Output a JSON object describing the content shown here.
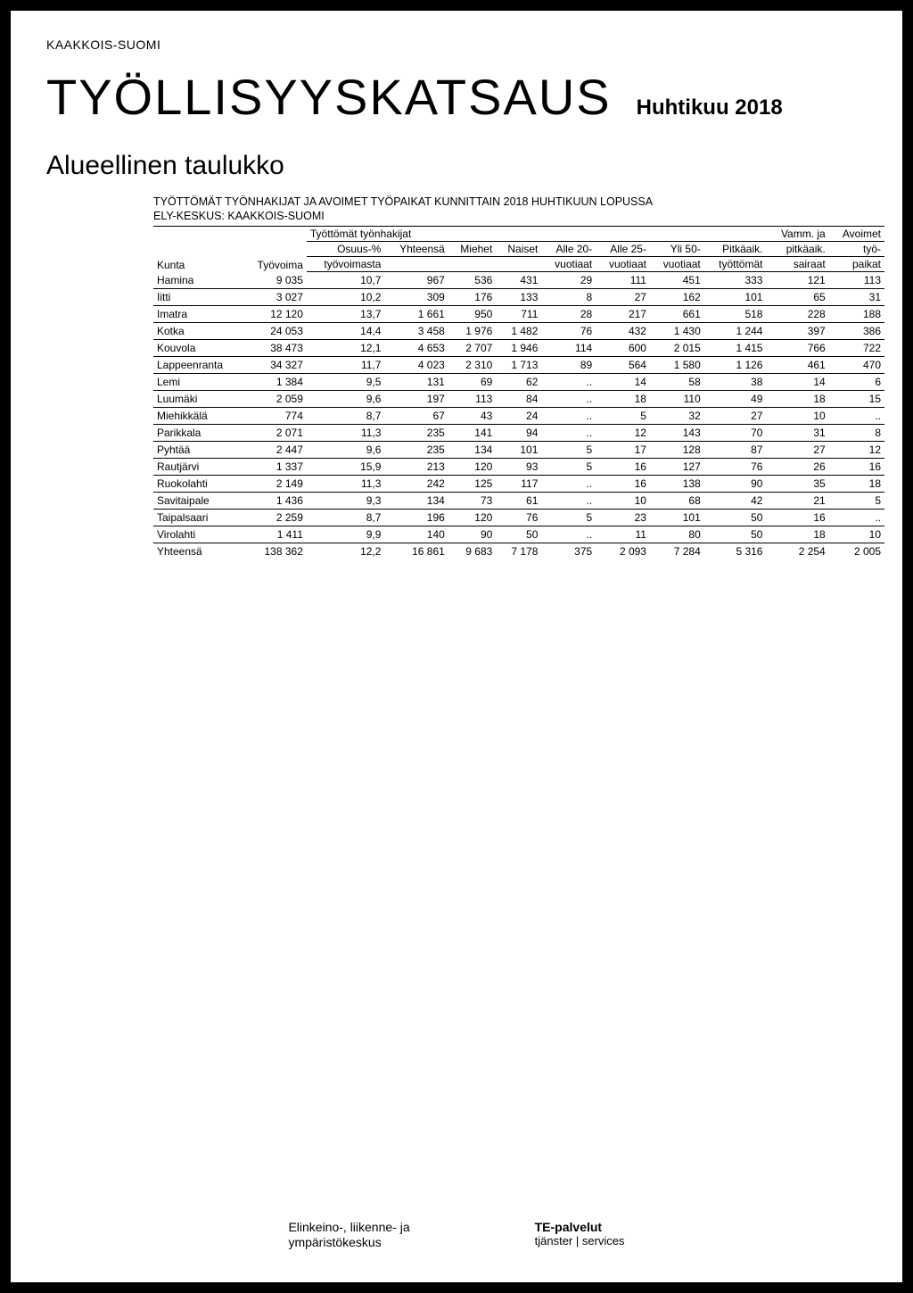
{
  "region_label": "KAAKKOIS-SUOMI",
  "main_title": "TYÖLLISYYSKATSAUS",
  "title_month": "Huhtikuu 2018",
  "section_title": "Alueellinen taulukko",
  "table_caption": "TYÖTTÖMÄT TYÖNHAKIJAT JA AVOIMET TYÖPAIKAT KUNNITTAIN 2018 HUHTIKUUN LOPUSSA",
  "table_subcaption": "ELY-KESKUS: KAAKKOIS-SUOMI",
  "columns": {
    "kunta": "Kunta",
    "tyovoima": "Työvoima",
    "group_label": "Työttömät työnhakijat",
    "osuus_l1": "Osuus-%",
    "osuus_l2": "työvoimasta",
    "yhteensa": "Yhteensä",
    "miehet": "Miehet",
    "naiset": "Naiset",
    "alle20_l1": "Alle 20-",
    "alle20_l2": "vuotiaat",
    "alle25_l1": "Alle 25-",
    "alle25_l2": "vuotiaat",
    "yli50_l1": "Yli 50-",
    "yli50_l2": "vuotiaat",
    "pitkaaik_l1": "Pitkäaik.",
    "pitkaaik_l2": "työttömät",
    "vamm_l1": "Vamm. ja",
    "vamm_l2": "pitkäaik.",
    "vamm_l3": "sairaat",
    "avoimet_l1": "Avoimet",
    "avoimet_l2": "työ-",
    "avoimet_l3": "paikat"
  },
  "rows": [
    {
      "kunta": "Hamina",
      "tyovoima": "9 035",
      "osuus": "10,7",
      "yhteensa": "967",
      "miehet": "536",
      "naiset": "431",
      "alle20": "29",
      "alle25": "111",
      "yli50": "451",
      "pitkaaik": "333",
      "vamm": "121",
      "avoimet": "113"
    },
    {
      "kunta": "Iitti",
      "tyovoima": "3 027",
      "osuus": "10,2",
      "yhteensa": "309",
      "miehet": "176",
      "naiset": "133",
      "alle20": "8",
      "alle25": "27",
      "yli50": "162",
      "pitkaaik": "101",
      "vamm": "65",
      "avoimet": "31"
    },
    {
      "kunta": "Imatra",
      "tyovoima": "12 120",
      "osuus": "13,7",
      "yhteensa": "1 661",
      "miehet": "950",
      "naiset": "711",
      "alle20": "28",
      "alle25": "217",
      "yli50": "661",
      "pitkaaik": "518",
      "vamm": "228",
      "avoimet": "188"
    },
    {
      "kunta": "Kotka",
      "tyovoima": "24 053",
      "osuus": "14,4",
      "yhteensa": "3 458",
      "miehet": "1 976",
      "naiset": "1 482",
      "alle20": "76",
      "alle25": "432",
      "yli50": "1 430",
      "pitkaaik": "1 244",
      "vamm": "397",
      "avoimet": "386"
    },
    {
      "kunta": "Kouvola",
      "tyovoima": "38 473",
      "osuus": "12,1",
      "yhteensa": "4 653",
      "miehet": "2 707",
      "naiset": "1 946",
      "alle20": "114",
      "alle25": "600",
      "yli50": "2 015",
      "pitkaaik": "1 415",
      "vamm": "766",
      "avoimet": "722"
    },
    {
      "kunta": "Lappeenranta",
      "tyovoima": "34 327",
      "osuus": "11,7",
      "yhteensa": "4 023",
      "miehet": "2 310",
      "naiset": "1 713",
      "alle20": "89",
      "alle25": "564",
      "yli50": "1 580",
      "pitkaaik": "1 126",
      "vamm": "461",
      "avoimet": "470"
    },
    {
      "kunta": "Lemi",
      "tyovoima": "1 384",
      "osuus": "9,5",
      "yhteensa": "131",
      "miehet": "69",
      "naiset": "62",
      "alle20": "..",
      "alle25": "14",
      "yli50": "58",
      "pitkaaik": "38",
      "vamm": "14",
      "avoimet": "6"
    },
    {
      "kunta": "Luumäki",
      "tyovoima": "2 059",
      "osuus": "9,6",
      "yhteensa": "197",
      "miehet": "113",
      "naiset": "84",
      "alle20": "..",
      "alle25": "18",
      "yli50": "110",
      "pitkaaik": "49",
      "vamm": "18",
      "avoimet": "15"
    },
    {
      "kunta": "Miehikkälä",
      "tyovoima": "774",
      "osuus": "8,7",
      "yhteensa": "67",
      "miehet": "43",
      "naiset": "24",
      "alle20": "..",
      "alle25": "5",
      "yli50": "32",
      "pitkaaik": "27",
      "vamm": "10",
      "avoimet": ".."
    },
    {
      "kunta": "Parikkala",
      "tyovoima": "2 071",
      "osuus": "11,3",
      "yhteensa": "235",
      "miehet": "141",
      "naiset": "94",
      "alle20": "..",
      "alle25": "12",
      "yli50": "143",
      "pitkaaik": "70",
      "vamm": "31",
      "avoimet": "8"
    },
    {
      "kunta": "Pyhtää",
      "tyovoima": "2 447",
      "osuus": "9,6",
      "yhteensa": "235",
      "miehet": "134",
      "naiset": "101",
      "alle20": "5",
      "alle25": "17",
      "yli50": "128",
      "pitkaaik": "87",
      "vamm": "27",
      "avoimet": "12"
    },
    {
      "kunta": "Rautjärvi",
      "tyovoima": "1 337",
      "osuus": "15,9",
      "yhteensa": "213",
      "miehet": "120",
      "naiset": "93",
      "alle20": "5",
      "alle25": "16",
      "yli50": "127",
      "pitkaaik": "76",
      "vamm": "26",
      "avoimet": "16"
    },
    {
      "kunta": "Ruokolahti",
      "tyovoima": "2 149",
      "osuus": "11,3",
      "yhteensa": "242",
      "miehet": "125",
      "naiset": "117",
      "alle20": "..",
      "alle25": "16",
      "yli50": "138",
      "pitkaaik": "90",
      "vamm": "35",
      "avoimet": "18"
    },
    {
      "kunta": "Savitaipale",
      "tyovoima": "1 436",
      "osuus": "9,3",
      "yhteensa": "134",
      "miehet": "73",
      "naiset": "61",
      "alle20": "..",
      "alle25": "10",
      "yli50": "68",
      "pitkaaik": "42",
      "vamm": "21",
      "avoimet": "5"
    },
    {
      "kunta": "Taipalsaari",
      "tyovoima": "2 259",
      "osuus": "8,7",
      "yhteensa": "196",
      "miehet": "120",
      "naiset": "76",
      "alle20": "5",
      "alle25": "23",
      "yli50": "101",
      "pitkaaik": "50",
      "vamm": "16",
      "avoimet": ".."
    },
    {
      "kunta": "Virolahti",
      "tyovoima": "1 411",
      "osuus": "9,9",
      "yhteensa": "140",
      "miehet": "90",
      "naiset": "50",
      "alle20": "..",
      "alle25": "11",
      "yli50": "80",
      "pitkaaik": "50",
      "vamm": "18",
      "avoimet": "10"
    }
  ],
  "total": {
    "kunta": "Yhteensä",
    "tyovoima": "138 362",
    "osuus": "12,2",
    "yhteensa": "16 861",
    "miehet": "9 683",
    "naiset": "7 178",
    "alle20": "375",
    "alle25": "2 093",
    "yli50": "7 284",
    "pitkaaik": "5 316",
    "vamm": "2 254",
    "avoimet": "2 005"
  },
  "footer": {
    "left_l1": "Elinkeino-, liikenne- ja",
    "left_l2": "ympäristökeskus",
    "right_l1": "TE-palvelut",
    "right_l2": "tjänster | services"
  },
  "style": {
    "background_color": "#000000",
    "page_color": "#ffffff",
    "text_color": "#000000",
    "border_color": "#000000",
    "row_font_size": 12,
    "title_font_size": 56,
    "section_font_size": 30
  }
}
